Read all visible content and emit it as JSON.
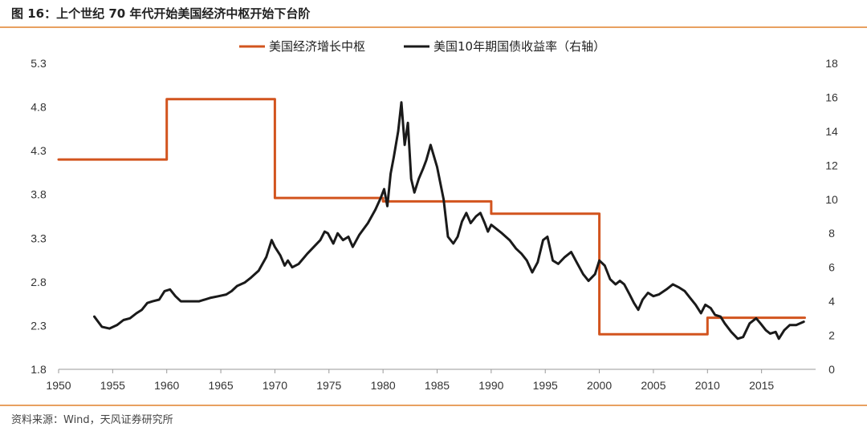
{
  "header": {
    "title": "图 16：上个世纪 70 年代开始美国经济中枢开始下台阶"
  },
  "footer": {
    "source": "资料来源：Wind，天风证券研究所"
  },
  "colors": {
    "gdp_center": "#D2541E",
    "treasury_yield": "#1A1A1A",
    "rule": "#E8A060"
  },
  "chart_data": {
    "type": "line",
    "x_ticks": [
      "1950",
      "1955",
      "1960",
      "1965",
      "1970",
      "1975",
      "1980",
      "1985",
      "1990",
      "1995",
      "2000",
      "2005",
      "2010",
      "2015"
    ],
    "x_range": [
      1950,
      2020
    ],
    "y_left": {
      "range": [
        1.8,
        5.3
      ],
      "ticks": [
        "1.8",
        "2.3",
        "2.8",
        "3.3",
        "3.8",
        "4.3",
        "4.8",
        "5.3"
      ]
    },
    "y_right": {
      "range": [
        0,
        18
      ],
      "ticks": [
        "0",
        "2",
        "4",
        "6",
        "8",
        "10",
        "12",
        "14",
        "16",
        "18"
      ]
    },
    "legend_position": "top",
    "series": [
      {
        "name": "美国经济增长中枢",
        "axis": "left",
        "step": true,
        "x": [
          1950,
          1960,
          1960,
          1970,
          1970,
          1980,
          1980,
          1990,
          1990,
          2000,
          2000,
          2010,
          2010,
          2019
        ],
        "y": [
          4.2,
          4.2,
          4.89,
          4.89,
          3.76,
          3.76,
          3.72,
          3.72,
          3.58,
          3.58,
          2.2,
          2.2,
          2.39,
          2.39
        ]
      },
      {
        "name": "美国10年期国债收益率（右轴）",
        "axis": "right",
        "x": [
          1953.3,
          1954,
          1954.7,
          1955.4,
          1956,
          1956.6,
          1957.2,
          1957.7,
          1958.2,
          1958.7,
          1959.3,
          1959.8,
          1960.3,
          1960.8,
          1961.3,
          1962,
          1963,
          1964,
          1964.8,
          1965.5,
          1966,
          1966.5,
          1967.2,
          1967.8,
          1968.5,
          1969.2,
          1969.7,
          1970,
          1970.5,
          1970.9,
          1971.2,
          1971.6,
          1972.2,
          1973,
          1973.6,
          1974.2,
          1974.6,
          1974.9,
          1975.4,
          1975.8,
          1976.3,
          1976.8,
          1977.2,
          1977.8,
          1978.6,
          1979.3,
          1979.8,
          1980.1,
          1980.4,
          1980.7,
          1981,
          1981.4,
          1981.7,
          1982,
          1982.3,
          1982.6,
          1982.9,
          1983.3,
          1983.7,
          1984,
          1984.4,
          1985,
          1985.6,
          1986,
          1986.5,
          1986.9,
          1987.3,
          1987.7,
          1988.1,
          1988.6,
          1989,
          1989.4,
          1989.7,
          1990,
          1991,
          1991.7,
          1992.3,
          1992.8,
          1993.3,
          1993.8,
          1994.3,
          1994.8,
          1995.2,
          1995.7,
          1996.2,
          1996.8,
          1997.4,
          1997.9,
          1998.5,
          1999,
          1999.6,
          2000,
          2000.5,
          2001,
          2001.5,
          2001.9,
          2002.3,
          2002.8,
          2003.2,
          2003.6,
          2004,
          2004.5,
          2005,
          2005.5,
          2006.2,
          2006.8,
          2007.4,
          2007.9,
          2008.4,
          2008.9,
          2009.4,
          2009.8,
          2010.3,
          2010.7,
          2011.2,
          2011.6,
          2012.2,
          2012.8,
          2013.3,
          2013.9,
          2014.5,
          2014.9,
          2015.4,
          2015.8,
          2016.3,
          2016.6,
          2017.1,
          2017.6,
          2018.2,
          2018.9
        ],
        "y": [
          3.1,
          2.5,
          2.4,
          2.6,
          2.9,
          3.0,
          3.3,
          3.5,
          3.9,
          4.0,
          4.1,
          4.6,
          4.7,
          4.3,
          4.0,
          4.0,
          4.0,
          4.2,
          4.3,
          4.4,
          4.6,
          4.9,
          5.1,
          5.4,
          5.8,
          6.6,
          7.6,
          7.2,
          6.7,
          6.1,
          6.4,
          6.0,
          6.2,
          6.8,
          7.2,
          7.6,
          8.1,
          8.0,
          7.4,
          8.0,
          7.6,
          7.8,
          7.2,
          7.9,
          8.6,
          9.4,
          10.1,
          10.6,
          9.6,
          11.5,
          12.5,
          14.0,
          15.7,
          13.2,
          14.5,
          11.2,
          10.4,
          11.2,
          11.8,
          12.3,
          13.2,
          11.9,
          10.0,
          7.8,
          7.4,
          7.8,
          8.7,
          9.2,
          8.6,
          9.0,
          9.2,
          8.6,
          8.1,
          8.5,
          8.0,
          7.6,
          7.1,
          6.8,
          6.4,
          5.7,
          6.3,
          7.6,
          7.8,
          6.4,
          6.2,
          6.6,
          6.9,
          6.3,
          5.6,
          5.2,
          5.6,
          6.4,
          6.1,
          5.3,
          5.0,
          5.2,
          5.0,
          4.4,
          3.9,
          3.5,
          4.1,
          4.5,
          4.3,
          4.4,
          4.7,
          5.0,
          4.8,
          4.6,
          4.2,
          3.8,
          3.3,
          3.8,
          3.6,
          3.2,
          3.1,
          2.7,
          2.2,
          1.8,
          1.9,
          2.7,
          3.0,
          2.7,
          2.3,
          2.1,
          2.2,
          1.8,
          2.3,
          2.6,
          2.6,
          2.8
        ]
      }
    ]
  }
}
